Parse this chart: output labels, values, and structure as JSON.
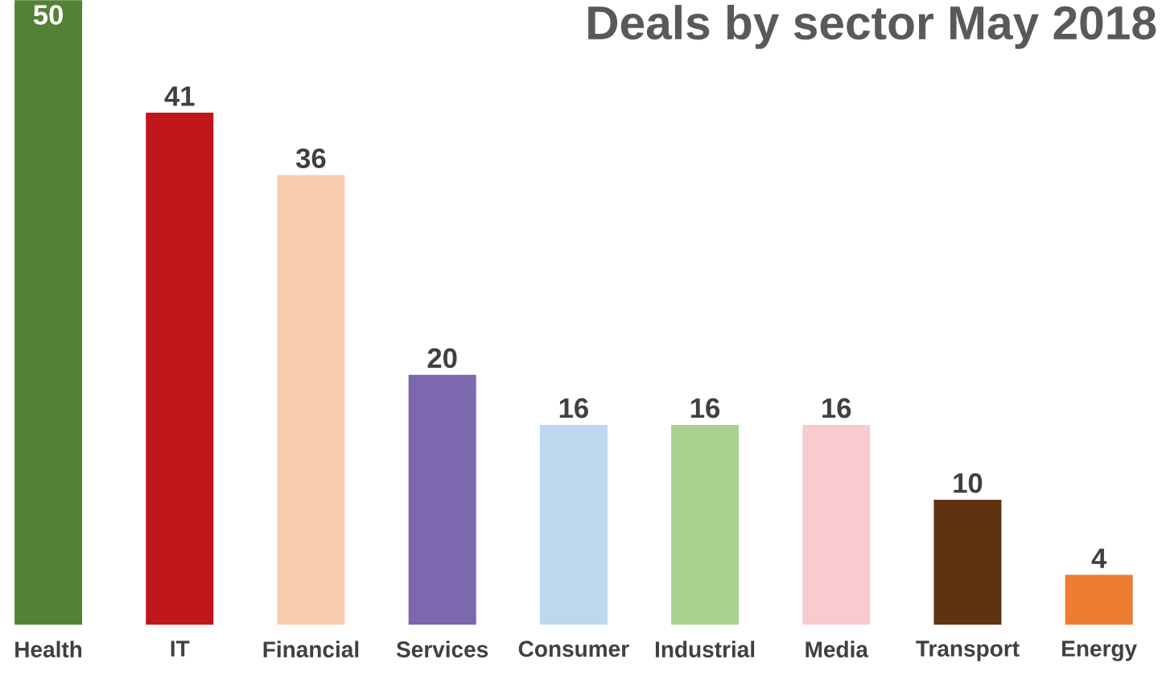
{
  "chart_data": {
    "type": "bar",
    "title": "Deals by sector May 2018",
    "categories": [
      "Health",
      "IT",
      "Financial",
      "Services",
      "Consumer",
      "Industrial",
      "Media",
      "Transport",
      "Energy"
    ],
    "values": [
      50,
      41,
      36,
      20,
      16,
      16,
      16,
      10,
      4
    ],
    "colors": [
      "#548235",
      "#c0171a",
      "#f8cbad",
      "#7b68ae",
      "#bdd7ee",
      "#a9d18e",
      "#f8cbcf",
      "#5f3311",
      "#ed7d31"
    ],
    "data_labels": true
  }
}
